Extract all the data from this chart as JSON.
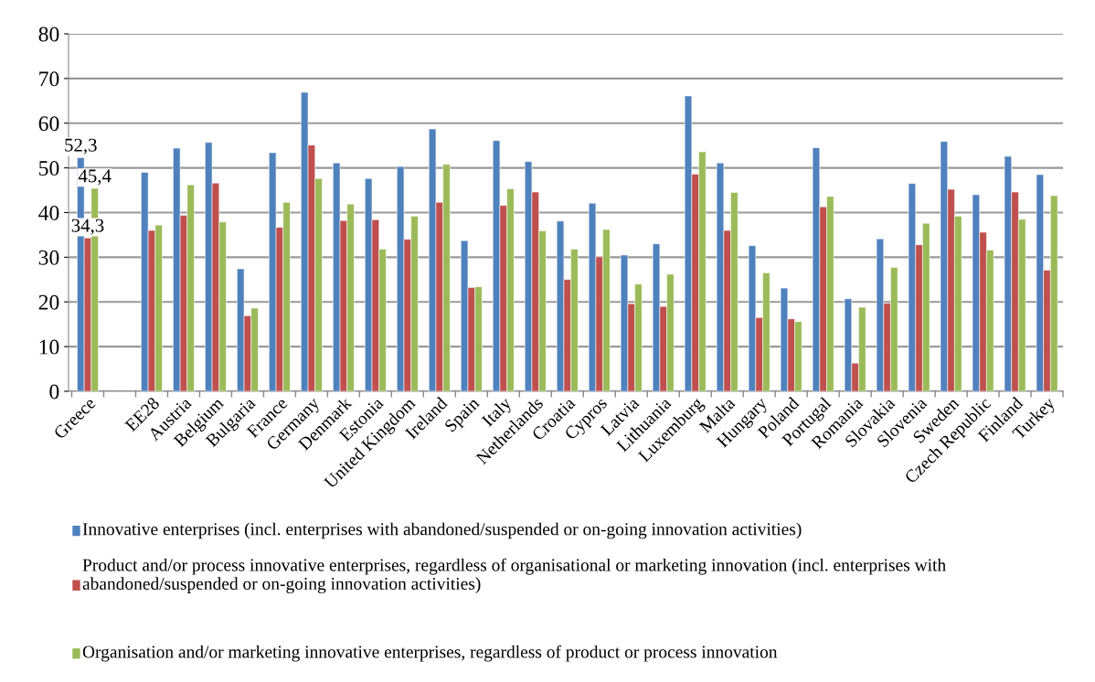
{
  "chart_data": {
    "type": "bar",
    "categories": [
      "Greece",
      null,
      "EE28",
      "Austria",
      "Belgium",
      "Bulgaria",
      "France",
      "Germany",
      "Denmark",
      "Estonia",
      "United Kingdom",
      "Ireland",
      "Spain",
      "Italy",
      "Netherlands",
      "Croatia",
      "Cypros",
      "Latvia",
      "Lithuania",
      "Luxemburg",
      "Malta",
      "Hungary",
      "Poland",
      "Portugal",
      "Romania",
      "Slovakia",
      "Slovenia",
      "Sweden",
      "Czech Republic",
      "Finland",
      "Turkey"
    ],
    "series": [
      {
        "name": "Innovative enterprises (incl. enterprises with abandoned/suspended or on-going innovation activities)",
        "color": "#4f81bd",
        "values": [
          52.3,
          null,
          49.0,
          54.4,
          55.7,
          27.4,
          53.4,
          66.9,
          51.1,
          47.6,
          50.3,
          58.7,
          33.7,
          56.1,
          51.4,
          38.1,
          42.1,
          30.5,
          33.0,
          66.1,
          51.1,
          32.6,
          23.1,
          54.5,
          20.7,
          34.1,
          46.5,
          55.9,
          44.0,
          52.6,
          48.5
        ],
        "value_labels": [
          "52,3",
          null,
          null,
          null,
          null,
          null,
          null,
          null,
          null,
          null,
          null,
          null,
          null,
          null,
          null,
          null,
          null,
          null,
          null,
          null,
          null,
          null,
          null,
          null,
          null,
          null,
          null,
          null,
          null,
          null,
          null
        ]
      },
      {
        "name": "Product and/or process innovative enterprises, regardless of organisational or marketing innovation (incl. enterprises with abandoned/suspended or on-going innovation activities)",
        "color": "#c0504d",
        "values": [
          34.3,
          null,
          36.0,
          39.4,
          46.6,
          16.9,
          36.7,
          55.1,
          38.2,
          38.4,
          34.0,
          42.3,
          23.2,
          41.6,
          44.6,
          25.0,
          30.1,
          19.6,
          19.0,
          48.6,
          36.0,
          16.5,
          16.2,
          41.3,
          6.3,
          19.7,
          32.8,
          45.2,
          35.6,
          44.6,
          27.1
        ],
        "value_labels": [
          "34,3",
          null,
          null,
          null,
          null,
          null,
          null,
          null,
          null,
          null,
          null,
          null,
          null,
          null,
          null,
          null,
          null,
          null,
          null,
          null,
          null,
          null,
          null,
          null,
          null,
          null,
          null,
          null,
          null,
          null,
          null
        ]
      },
      {
        "name": "Organisation and/or marketing innovative enterprises, regardless of product or process innovation",
        "color": "#9bbb59",
        "values": [
          45.4,
          null,
          37.2,
          46.2,
          37.9,
          18.6,
          42.3,
          47.6,
          41.9,
          31.8,
          39.2,
          50.8,
          23.4,
          45.3,
          35.9,
          31.8,
          36.2,
          24.0,
          26.2,
          53.6,
          44.5,
          26.5,
          15.6,
          43.6,
          18.8,
          27.7,
          37.6,
          39.2,
          31.6,
          38.5,
          43.8
        ],
        "value_labels": [
          "45,4",
          null,
          null,
          null,
          null,
          null,
          null,
          null,
          null,
          null,
          null,
          null,
          null,
          null,
          null,
          null,
          null,
          null,
          null,
          null,
          null,
          null,
          null,
          null,
          null,
          null,
          null,
          null,
          null,
          null,
          null
        ]
      }
    ],
    "ylim": [
      0,
      80
    ],
    "yticks": [
      0,
      10,
      20,
      30,
      40,
      50,
      60,
      70,
      80
    ],
    "grid": "y",
    "legend": "bottom"
  }
}
